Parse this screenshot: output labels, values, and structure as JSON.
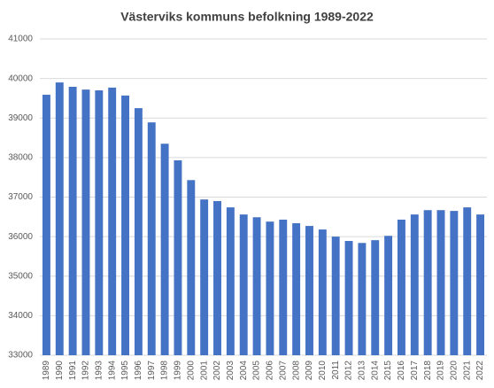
{
  "chart_data": {
    "type": "bar",
    "title": "Västerviks kommuns befolkning 1989-2022",
    "categories": [
      "1989",
      "1990",
      "1991",
      "1992",
      "1993",
      "1994",
      "1995",
      "1996",
      "1997",
      "1998",
      "1999",
      "2000",
      "2001",
      "2002",
      "2003",
      "2004",
      "2005",
      "2006",
      "2007",
      "2008",
      "2009",
      "2010",
      "2011",
      "2012",
      "2013",
      "2014",
      "2015",
      "2016",
      "2017",
      "2018",
      "2019",
      "2020",
      "2021",
      "2022"
    ],
    "values": [
      39590,
      39900,
      39790,
      39720,
      39700,
      39770,
      39570,
      39250,
      38890,
      38350,
      37930,
      37430,
      36940,
      36900,
      36740,
      36560,
      36490,
      36380,
      36430,
      36340,
      36270,
      36180,
      36000,
      35890,
      35840,
      35910,
      36020,
      36430,
      36560,
      36670,
      36670,
      36650,
      36740,
      36560
    ],
    "color": "#4472c4",
    "ylim": [
      33000,
      41000
    ],
    "yticks": [
      33000,
      34000,
      35000,
      36000,
      37000,
      38000,
      39000,
      40000,
      41000
    ],
    "grid": true
  }
}
